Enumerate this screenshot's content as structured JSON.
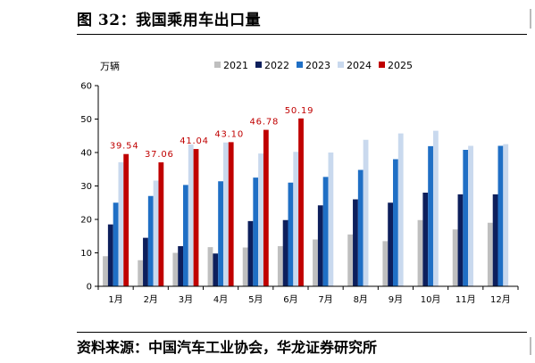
{
  "figure": {
    "title": "图 32：我国乘用车出口量",
    "source": "资料来源：中国汽车工业协会，华龙证券研究所"
  },
  "chart_data": {
    "type": "bar",
    "unit_label": "万辆",
    "categories": [
      "1月",
      "2月",
      "3月",
      "4月",
      "5月",
      "6月",
      "7月",
      "8月",
      "9月",
      "10月",
      "11月",
      "12月"
    ],
    "ylim": [
      0,
      60
    ],
    "yticks": [
      0,
      10,
      20,
      30,
      40,
      50,
      60
    ],
    "grid": false,
    "legend_position": "top-right",
    "series": [
      {
        "name": "2021",
        "color": "#BFBFBF",
        "values": [
          9,
          7.8,
          10,
          11.7,
          11.6,
          12,
          14,
          15.5,
          13.5,
          19.8,
          17,
          19
        ]
      },
      {
        "name": "2022",
        "color": "#0D1F5C",
        "values": [
          18.5,
          14.5,
          12,
          9.8,
          19.5,
          19.8,
          24.2,
          26,
          25,
          28,
          27.5,
          27.5
        ]
      },
      {
        "name": "2023",
        "color": "#1F6FC5",
        "values": [
          25,
          27,
          30.3,
          31.4,
          32.5,
          31,
          32.7,
          34.8,
          38,
          41.9,
          40.8,
          42
        ]
      },
      {
        "name": "2024",
        "color": "#C9D9EE",
        "values": [
          37.1,
          31.6,
          42.4,
          43,
          39.7,
          40.2,
          40,
          43.8,
          45.7,
          46.5,
          42,
          42.5
        ]
      },
      {
        "name": "2025",
        "color": "#C00000",
        "values": [
          39.54,
          37.06,
          41.04,
          43.1,
          46.78,
          50.19,
          null,
          null,
          null,
          null,
          null,
          null
        ]
      }
    ],
    "data_labels": [
      {
        "category_index": 0,
        "text": "39.54"
      },
      {
        "category_index": 1,
        "text": "37.06"
      },
      {
        "category_index": 2,
        "text": "41.04"
      },
      {
        "category_index": 3,
        "text": "43.10"
      },
      {
        "category_index": 4,
        "text": "46.78"
      },
      {
        "category_index": 5,
        "text": "50.19"
      }
    ],
    "data_label_color": "#C00000"
  }
}
